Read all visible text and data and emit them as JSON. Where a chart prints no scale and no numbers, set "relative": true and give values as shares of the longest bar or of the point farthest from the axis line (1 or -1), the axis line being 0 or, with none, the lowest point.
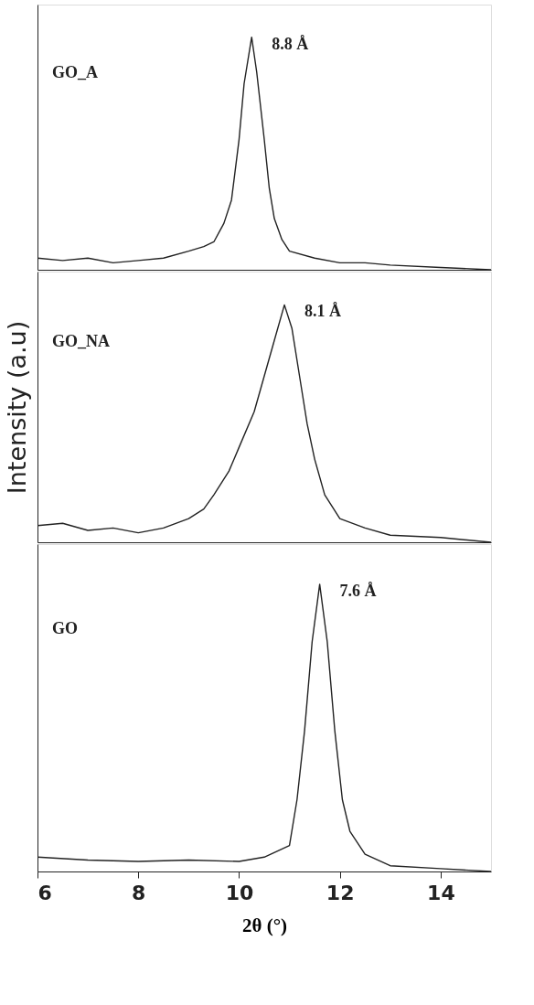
{
  "chart_data": [
    {
      "type": "line",
      "relative": true,
      "x": [
        6,
        6.5,
        7,
        7.5,
        8,
        8.5,
        9,
        9.3,
        9.5,
        9.7,
        9.85,
        10,
        10.1,
        10.25,
        10.35,
        10.5,
        10.6,
        10.7,
        10.85,
        11,
        11.5,
        12,
        12.5,
        13,
        14,
        15
      ],
      "series": [
        {
          "name": "GO_A",
          "color": "#222222",
          "values": [
            0.05,
            0.04,
            0.05,
            0.03,
            0.04,
            0.05,
            0.08,
            0.1,
            0.12,
            0.2,
            0.3,
            0.56,
            0.8,
            1,
            0.85,
            0.56,
            0.35,
            0.22,
            0.13,
            0.08,
            0.05,
            0.03,
            0.03,
            0.02,
            0.01,
            0
          ]
        }
      ],
      "xlim": [
        6,
        15
      ],
      "xticks": [
        6,
        8,
        10,
        12,
        14
      ],
      "tick_labels": false,
      "annotations": [
        {
          "text": "8.8 Å",
          "x": 10.25,
          "y": 1
        }
      ]
    },
    {
      "type": "line",
      "relative": true,
      "x": [
        6,
        6.5,
        7,
        7.5,
        8,
        8.5,
        9,
        9.3,
        9.5,
        9.8,
        10,
        10.3,
        10.5,
        10.7,
        10.9,
        11.05,
        11.2,
        11.35,
        11.5,
        11.7,
        12,
        12.5,
        13,
        14,
        15
      ],
      "series": [
        {
          "name": "GO_NA",
          "color": "#222222",
          "values": [
            0.07,
            0.08,
            0.05,
            0.06,
            0.04,
            0.06,
            0.1,
            0.14,
            0.2,
            0.3,
            0.4,
            0.55,
            0.7,
            0.85,
            1,
            0.9,
            0.7,
            0.5,
            0.35,
            0.2,
            0.1,
            0.06,
            0.03,
            0.02,
            0
          ]
        }
      ],
      "xlim": [
        6,
        15
      ],
      "xticks": [
        6,
        8,
        10,
        12,
        14
      ],
      "tick_labels": false,
      "ylabel": "Intensity (a.u)",
      "annotations": [
        {
          "text": "8.1 Å",
          "x": 10.9,
          "y": 1
        }
      ]
    },
    {
      "type": "line",
      "relative": true,
      "x": [
        6,
        7,
        8,
        9,
        10,
        10.5,
        11,
        11.15,
        11.3,
        11.45,
        11.6,
        11.75,
        11.9,
        12.05,
        12.2,
        12.5,
        13,
        14,
        15
      ],
      "series": [
        {
          "name": "GO",
          "color": "#222222",
          "values": [
            0.05,
            0.04,
            0.035,
            0.04,
            0.035,
            0.05,
            0.09,
            0.25,
            0.49,
            0.8,
            1,
            0.8,
            0.49,
            0.25,
            0.14,
            0.06,
            0.02,
            0.01,
            0
          ]
        }
      ],
      "xlim": [
        6,
        15
      ],
      "xticks": [
        6,
        8,
        10,
        12,
        14
      ],
      "tick_labels": "x",
      "xlabel": "2θ (°)",
      "annotations": [
        {
          "text": "7.6 Å",
          "x": 11.6,
          "y": 1
        }
      ]
    }
  ]
}
